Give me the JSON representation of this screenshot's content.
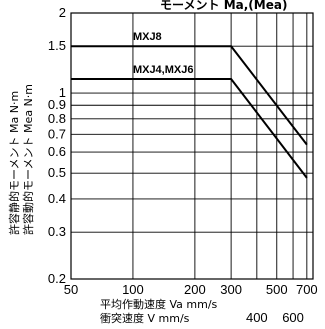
{
  "chart_data": {
    "type": "line",
    "title": "モーメント Ma,(Mea)",
    "xlabel": "平均作動速度 Va mm/s",
    "xlabel2": "衝突速度 V mm/s",
    "ylabel": "許容静的モーメント Ma N·m",
    "ylabel2": "許容動的モーメント Mea N·m",
    "x_scale": "log",
    "y_scale": "log",
    "xlim": [
      50,
      750
    ],
    "ylim": [
      0.2,
      2
    ],
    "grid": true,
    "x_ticks_upper": [
      "50",
      "100",
      "200",
      "300",
      "500",
      "700"
    ],
    "x_ticks_upper_values": [
      50,
      100,
      200,
      300,
      500,
      700
    ],
    "x_ticks_lower": [
      "400",
      "600"
    ],
    "x_ticks_lower_values": [
      400,
      600
    ],
    "y_ticks": [
      "2",
      "1.5",
      "1",
      "0.9",
      "0.8",
      "0.7",
      "0.6",
      "0.5",
      "0.4",
      "0.3",
      "0.2"
    ],
    "y_tick_values": [
      2,
      1.5,
      1,
      0.9,
      0.8,
      0.7,
      0.6,
      0.5,
      0.4,
      0.3,
      0.2
    ],
    "series": [
      {
        "name": "MXJ8",
        "x": [
          50,
          300,
          700
        ],
        "y": [
          1.5,
          1.5,
          0.64
        ]
      },
      {
        "name": "MXJ4,MXJ6",
        "x": [
          50,
          300,
          700
        ],
        "y": [
          1.13,
          1.13,
          0.48
        ]
      }
    ]
  }
}
